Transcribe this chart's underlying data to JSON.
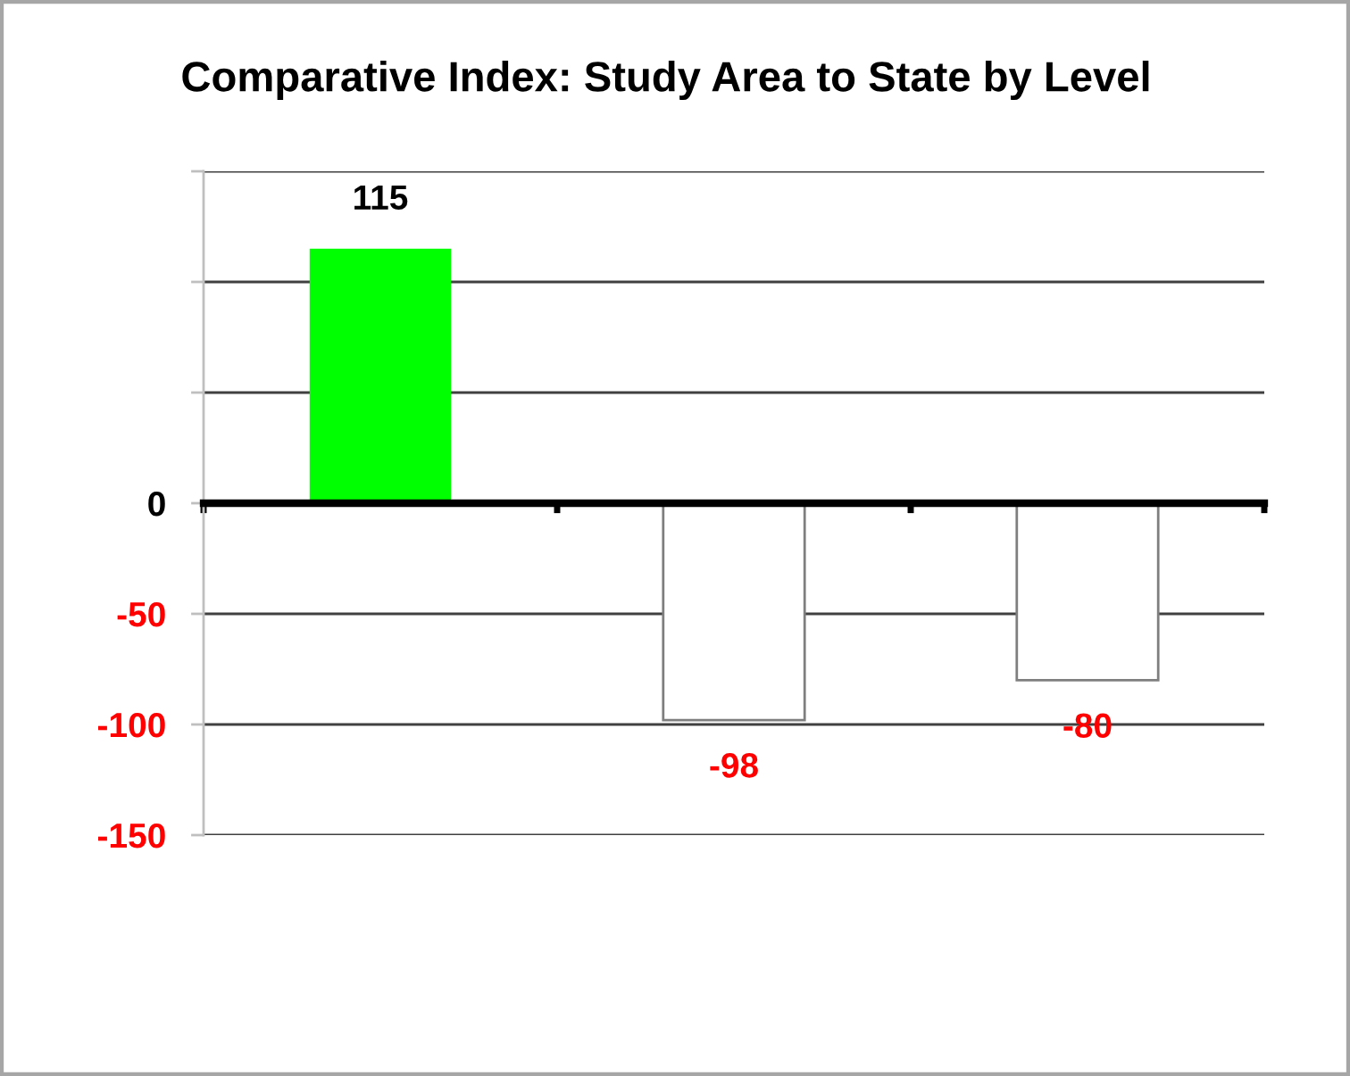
{
  "chart_data": {
    "type": "bar",
    "title": "Comparative Index: Study Area to State by Level",
    "categories": [
      null,
      null,
      null
    ],
    "values": [
      115,
      -98,
      -80
    ],
    "colors": [
      "#00ff00",
      "#ffffff",
      "#ffffff"
    ],
    "ylim": [
      -150,
      150
    ],
    "yticks": [
      {
        "value": -150,
        "label": "-150"
      },
      {
        "value": -100,
        "label": "-100"
      },
      {
        "value": -50,
        "label": "-50"
      },
      0,
      {
        "value": 50,
        "label": null
      },
      {
        "value": 100,
        "label": null
      },
      {
        "value": 150,
        "label": null
      }
    ],
    "grid": "y",
    "data_labels": true
  }
}
